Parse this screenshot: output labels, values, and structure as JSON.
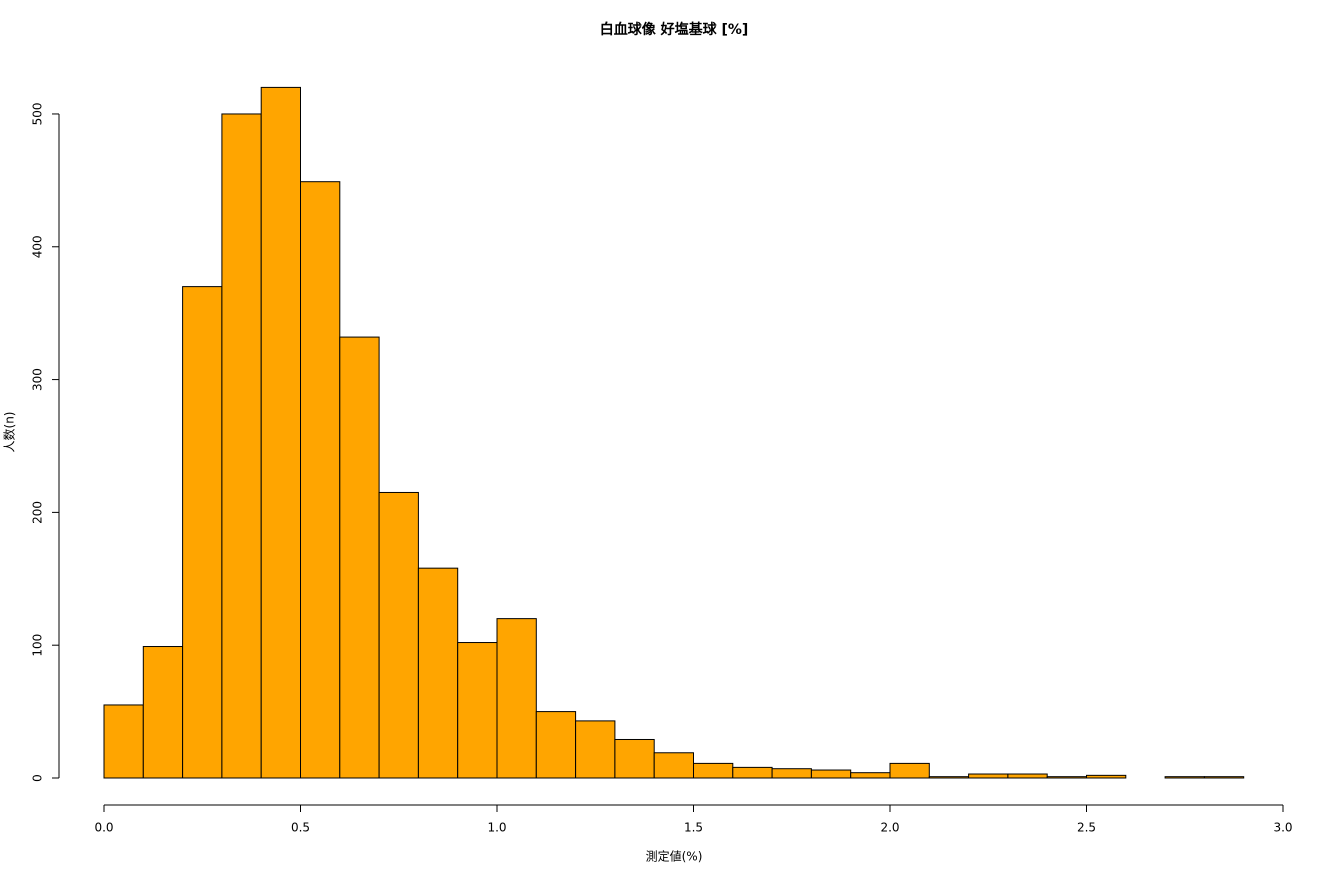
{
  "chart_data": {
    "type": "histogram",
    "title": "白血球像 好塩基球 [%]",
    "xlabel": "測定値(%)",
    "ylabel": "人数(n)",
    "bins": [
      0,
      0.1,
      0.2,
      0.3,
      0.4,
      0.5,
      0.6,
      0.7,
      0.8,
      0.9,
      1.0,
      1.1,
      1.2,
      1.3,
      1.4,
      1.5,
      1.6,
      1.7,
      1.8,
      1.9,
      2.0,
      2.1,
      2.2,
      2.3,
      2.4,
      2.5,
      2.6,
      2.7,
      2.8,
      2.9
    ],
    "values": [
      55,
      99,
      370,
      500,
      520,
      449,
      332,
      215,
      158,
      102,
      120,
      50,
      43,
      29,
      19,
      11,
      8,
      7,
      6,
      4,
      11,
      1,
      3,
      3,
      1,
      2,
      0,
      1,
      1
    ],
    "color": "#FFA500",
    "xlim": [
      0,
      3
    ],
    "xticks": [
      {
        "value": 0,
        "label": "0.0"
      },
      0.5,
      {
        "value": 1,
        "label": "1.0"
      },
      1.5,
      {
        "value": 2,
        "label": "2.0"
      },
      2.5,
      {
        "value": 3,
        "label": "3.0"
      }
    ],
    "ylim": [
      0,
      520
    ],
    "yticks": [
      0,
      100,
      200,
      300,
      400,
      500
    ]
  }
}
